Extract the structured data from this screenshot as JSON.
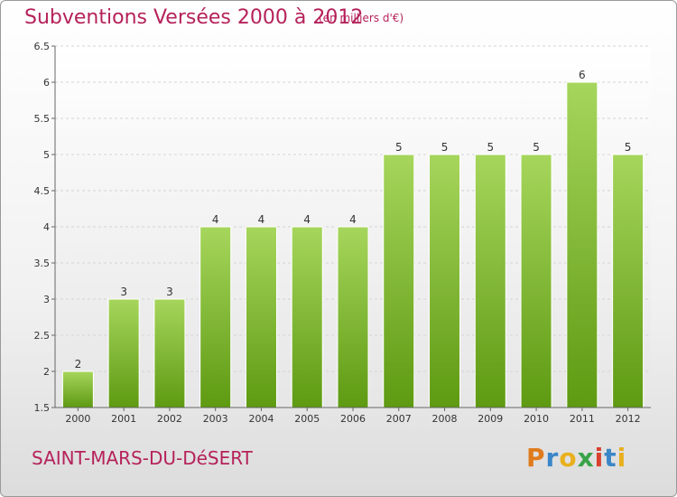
{
  "header": {
    "title": "Subventions Versées 2000 à 2012",
    "unit": "(en milliers d'€)"
  },
  "footer": {
    "commune": "SAINT-MARS-DU-DéSERT",
    "logo": "Proxiti"
  },
  "colors": {
    "title": "#b5225a",
    "bar_top": "#a6d65c",
    "bar_bottom": "#5e9a12"
  },
  "chart_data": {
    "type": "bar",
    "title": "Subventions Versées 2000 à 2012",
    "subtitle": "(en milliers d'€)",
    "categories": [
      "2000",
      "2001",
      "2002",
      "2003",
      "2004",
      "2005",
      "2006",
      "2007",
      "2008",
      "2009",
      "2010",
      "2011",
      "2012"
    ],
    "values": [
      2,
      3,
      3,
      4,
      4,
      4,
      4,
      5,
      5,
      5,
      5,
      6,
      5
    ],
    "data_labels": [
      "2",
      "3",
      "3",
      "4",
      "4",
      "4",
      "4",
      "5",
      "5",
      "5",
      "5",
      "6",
      "5"
    ],
    "ylim": [
      1.5,
      6.5
    ],
    "yticks": [
      "1.5",
      "2",
      "2.5",
      "3",
      "3.5",
      "4",
      "4.5",
      "5",
      "5.5",
      "6",
      "6.5"
    ],
    "xlabel": "",
    "ylabel": "",
    "grid": true
  }
}
